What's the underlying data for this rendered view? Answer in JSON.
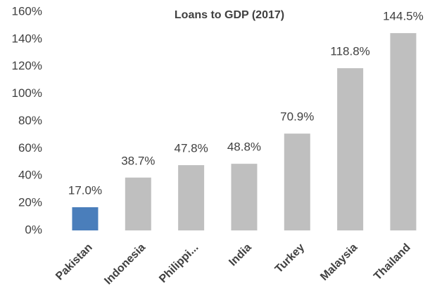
{
  "chart_data": {
    "type": "bar",
    "title": "Loans to GDP (2017)",
    "categories": [
      "Pakistan",
      "Indonesia",
      "Philippi...",
      "India",
      "Turkey",
      "Malaysia",
      "Thailand"
    ],
    "values": [
      17.0,
      38.7,
      47.8,
      48.8,
      70.9,
      118.8,
      144.5
    ],
    "value_labels": [
      "17.0%",
      "38.7%",
      "47.8%",
      "48.8%",
      "70.9%",
      "118.8%",
      "144.5%"
    ],
    "colors": [
      "#4a7ebb",
      "#bfbfbf",
      "#bfbfbf",
      "#bfbfbf",
      "#bfbfbf",
      "#bfbfbf",
      "#bfbfbf"
    ],
    "ylim": [
      0,
      160
    ],
    "yticks": [
      {
        "value": 0,
        "label": "0%"
      },
      {
        "value": 20,
        "label": "20%"
      },
      {
        "value": 40,
        "label": "40%"
      },
      {
        "value": 60,
        "label": "60%"
      },
      {
        "value": 80,
        "label": "80%"
      },
      {
        "value": 100,
        "label": "100%"
      },
      {
        "value": 120,
        "label": "120%"
      },
      {
        "value": 140,
        "label": "140%"
      },
      {
        "value": 160,
        "label": "160%"
      }
    ],
    "grid": false
  }
}
